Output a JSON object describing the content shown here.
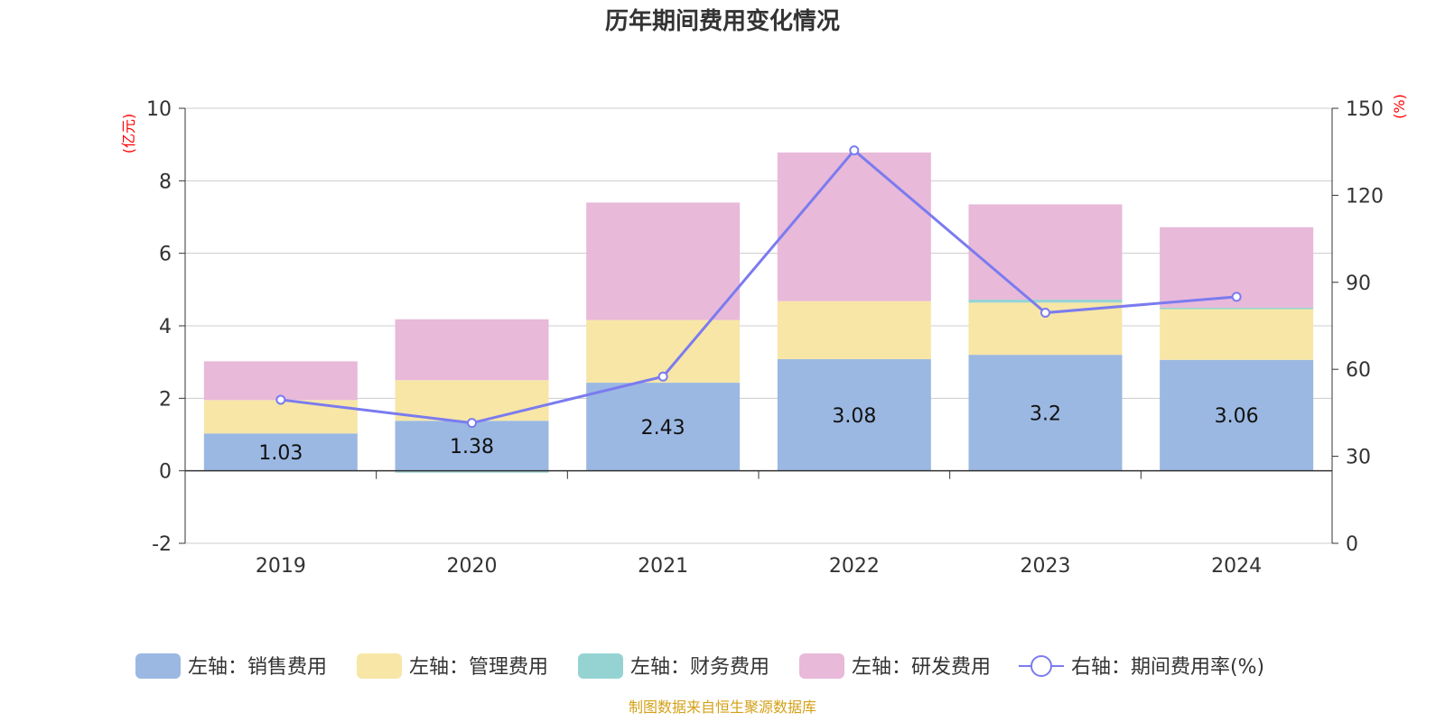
{
  "chart_data": {
    "type": "bar",
    "title": "历年期间费用变化情况",
    "categories": [
      "2019",
      "2020",
      "2021",
      "2022",
      "2023",
      "2024"
    ],
    "left_axis": {
      "unit": "(亿元)",
      "ylim": [
        -2,
        10
      ],
      "ticks": [
        "-2",
        "0",
        "2",
        "4",
        "6",
        "8",
        "10"
      ]
    },
    "right_axis": {
      "unit": "(%)",
      "ylim": [
        0,
        150
      ],
      "ticks": [
        "0",
        "30",
        "60",
        "90",
        "120",
        "150"
      ]
    },
    "series": [
      {
        "name": "左轴：销售费用",
        "axis": "left",
        "color": "#9bb8e2",
        "values": [
          1.03,
          1.38,
          2.43,
          3.08,
          3.2,
          3.06
        ],
        "labels": [
          "1.03",
          "1.38",
          "2.43",
          "3.08",
          "3.2",
          "3.06"
        ]
      },
      {
        "name": "左轴：管理费用",
        "axis": "left",
        "color": "#f7e6a6",
        "values": [
          0.92,
          1.12,
          1.73,
          1.6,
          1.44,
          1.4
        ]
      },
      {
        "name": "左轴：财务费用",
        "axis": "left",
        "color": "#95d3d3",
        "values": [
          0.0,
          -0.05,
          0.0,
          0.0,
          0.08,
          0.04
        ]
      },
      {
        "name": "左轴：研发费用",
        "axis": "left",
        "color": "#e8b9d9",
        "values": [
          1.07,
          1.68,
          3.24,
          4.1,
          2.63,
          2.22
        ]
      },
      {
        "name": "右轴：期间费用率(%)",
        "axis": "right",
        "type": "line",
        "color": "#7b7bef",
        "values": [
          49.5,
          41.5,
          57.5,
          135.5,
          79.5,
          85
        ]
      }
    ],
    "legend_position": "bottom",
    "source": "制图数据来自恒生聚源数据库"
  }
}
